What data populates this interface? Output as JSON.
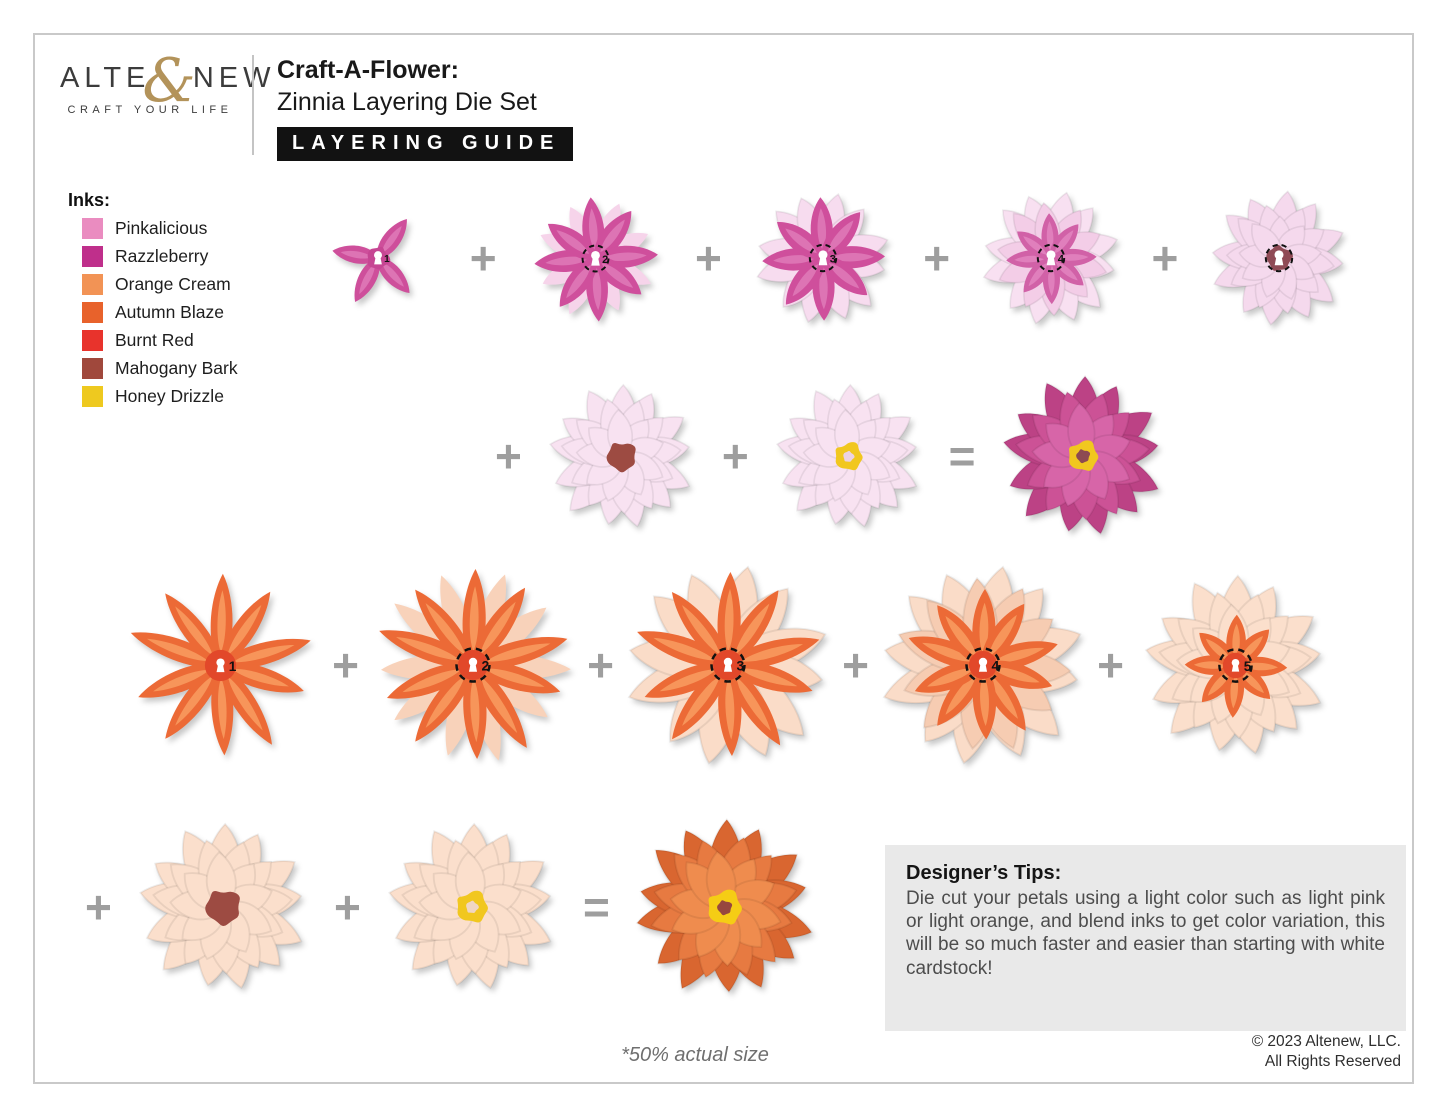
{
  "brand": {
    "logo_left": "ALT",
    "logo_mid": "E",
    "ampersand": "&",
    "logo_right": "NEW",
    "tagline": "CRAFT YOUR LIFE"
  },
  "header": {
    "title_line1": "Craft-A-Flower:",
    "title_line2": "Zinnia Layering Die Set",
    "badge": "LAYERING GUIDE"
  },
  "inks": {
    "title": "Inks:",
    "items": [
      {
        "name": "Pinkalicious",
        "color": "#ea8cc0"
      },
      {
        "name": "Razzleberry",
        "color": "#bf2f8b"
      },
      {
        "name": "Orange Cream",
        "color": "#f29355"
      },
      {
        "name": "Autumn Blaze",
        "color": "#e8622b"
      },
      {
        "name": "Burnt Red",
        "color": "#e8332c"
      },
      {
        "name": "Mahogany Bark",
        "color": "#a0483c"
      },
      {
        "name": "Honey Drizzle",
        "color": "#eec91f"
      }
    ]
  },
  "tips": {
    "title": "Designer’s Tips:",
    "body": "Die cut your petals using a light color such as light pink or light orange, and blend inks to get color variation, this will be so much faster and easier than starting with white cardstock!"
  },
  "footer": {
    "scale_note": "*50% actual size",
    "copyright_line1": "© 2023 Altenew, LLC.",
    "copyright_line2": "All Rights Reserved"
  },
  "figures": {
    "rows": [
      {
        "items": [
          {
            "kind": "flower",
            "spec": {
              "size": 150,
              "layers": [
                {
                  "angles": [
                    35,
                    140,
                    205,
                    280
                  ],
                  "len": 68,
                  "wid": 32,
                  "color": "#ce4f9b",
                  "streak": "#dd74b4"
                }
              ],
              "center": {
                "splat": {
                  "color": "#c64693",
                  "r": 17,
                  "seed": 3
                },
                "keyhole": true,
                "khScale": 1,
                "label": "1"
              }
            }
          },
          {
            "kind": "op",
            "glyph": "+"
          },
          {
            "kind": "flower",
            "spec": {
              "size": 165,
              "layers": [
                {
                  "n": 8,
                  "rot": 22,
                  "len": 76,
                  "wid": 34,
                  "color": "#f6d4ea"
                },
                {
                  "n": 8,
                  "rot": -6,
                  "len": 78,
                  "wid": 36,
                  "color": "#cf4f9c",
                  "streak": "#dd74b4"
                }
              ],
              "center": {
                "dashed": true,
                "keyhole": true,
                "khScale": 1,
                "label": "2"
              }
            }
          },
          {
            "kind": "op",
            "glyph": "+"
          },
          {
            "kind": "flower",
            "spec": {
              "size": 168,
              "layers": [
                {
                  "n": 12,
                  "rot": 12,
                  "len": 82,
                  "wid": 44,
                  "color": "#f7dcef",
                  "edge": true
                },
                {
                  "n": 8,
                  "rot": -4,
                  "len": 76,
                  "wid": 36,
                  "color": "#cf4f9c",
                  "streak": "#dd74b4"
                }
              ],
              "center": {
                "dashed": true,
                "keyhole": true,
                "khScale": 1,
                "label": "3"
              }
            }
          },
          {
            "kind": "op",
            "glyph": "+"
          },
          {
            "kind": "flower",
            "spec": {
              "size": 168,
              "layers": [
                {
                  "n": 12,
                  "rot": 12,
                  "len": 84,
                  "wid": 46,
                  "color": "#f8e0f1",
                  "edge": true
                },
                {
                  "n": 10,
                  "rot": 30,
                  "len": 70,
                  "wid": 40,
                  "color": "#f3cde7",
                  "edge": true
                },
                {
                  "n": 8,
                  "rot": -4,
                  "len": 56,
                  "wid": 28,
                  "color": "#d161a7",
                  "streak": "#e07fbc"
                }
              ],
              "center": {
                "dashed": true,
                "keyhole": true,
                "khScale": 1,
                "label": "4"
              }
            }
          },
          {
            "kind": "op",
            "glyph": "+"
          },
          {
            "kind": "flower",
            "spec": {
              "size": 168,
              "layers": [
                {
                  "n": 12,
                  "rot": 6,
                  "len": 84,
                  "wid": 46,
                  "color": "#f5d9ed",
                  "edge": true
                },
                {
                  "n": 10,
                  "rot": 24,
                  "len": 68,
                  "wid": 42,
                  "color": "#f5d9ed",
                  "edge": true
                },
                {
                  "n": 9,
                  "rot": 0,
                  "len": 52,
                  "wid": 36,
                  "color": "#f5d9ed",
                  "edge": true
                }
              ],
              "center": {
                "splat": {
                  "color": "#8f4a55",
                  "r": 17,
                  "seed": 5
                },
                "dashed": true,
                "keyhole": true,
                "khScale": 1
              }
            }
          }
        ]
      },
      {
        "items": [
          {
            "kind": "op",
            "glyph": "+"
          },
          {
            "kind": "flower",
            "spec": {
              "size": 175,
              "layers": [
                {
                  "n": 13,
                  "len": 86,
                  "wid": 46,
                  "color": "#f8e2f1",
                  "edge": true
                },
                {
                  "n": 11,
                  "rot": 16,
                  "len": 70,
                  "wid": 42,
                  "color": "#f8e2f1",
                  "edge": true
                },
                {
                  "n": 9,
                  "rot": 34,
                  "len": 54,
                  "wid": 38,
                  "color": "#f8e2f1",
                  "edge": true
                }
              ],
              "center": {
                "splat": {
                  "color": "#9d4b42",
                  "r": 19,
                  "seed": 7
                }
              }
            }
          },
          {
            "kind": "op",
            "glyph": "+"
          },
          {
            "kind": "flower",
            "spec": {
              "size": 175,
              "layers": [
                {
                  "n": 13,
                  "len": 86,
                  "wid": 46,
                  "color": "#f8e2f1",
                  "edge": true
                },
                {
                  "n": 11,
                  "rot": 16,
                  "len": 70,
                  "wid": 42,
                  "color": "#f8e2f1",
                  "edge": true
                },
                {
                  "n": 9,
                  "rot": 34,
                  "len": 54,
                  "wid": 38,
                  "color": "#f8e2f1",
                  "edge": true
                }
              ],
              "center": {
                "splat": {
                  "color": "#f1c71f",
                  "r": 18,
                  "seed": 9
                },
                "splat2": {
                  "color": "#ecd2e3",
                  "r": 7,
                  "seed": 4
                }
              }
            }
          },
          {
            "kind": "op",
            "glyph": "="
          },
          {
            "kind": "flower",
            "spec": {
              "size": 190,
              "layers": [
                {
                  "n": 13,
                  "len": 88,
                  "wid": 46,
                  "color": "#bc4285",
                  "edge": true
                },
                {
                  "n": 11,
                  "rot": 16,
                  "len": 72,
                  "wid": 42,
                  "color": "#cc5296",
                  "edge": true
                },
                {
                  "n": 9,
                  "rot": 34,
                  "len": 56,
                  "wid": 38,
                  "color": "#d765a8",
                  "edge": true
                }
              ],
              "center": {
                "splat": {
                  "color": "#f1c71f",
                  "r": 18,
                  "seed": 9
                },
                "splat2": {
                  "color": "#8d4a52",
                  "r": 8,
                  "seed": 6
                }
              }
            }
          }
        ]
      },
      {
        "items": [
          {
            "kind": "flower",
            "spec": {
              "size": 205,
              "layers": [
                {
                  "n": 10,
                  "rot": 0,
                  "len": 94,
                  "wid": 29,
                  "color": "#ec6a36",
                  "streak": "#f7955a"
                }
              ],
              "centerDot": {
                "color": "#e2482a",
                "r": 16
              },
              "center": {
                "keyhole": true,
                "khScale": 0.75,
                "label": "1"
              }
            }
          },
          {
            "kind": "op",
            "glyph": "+"
          },
          {
            "kind": "flower",
            "spec": {
              "size": 210,
              "layers": [
                {
                  "n": 10,
                  "rot": 18,
                  "len": 96,
                  "wid": 31,
                  "color": "#f8d2ba"
                },
                {
                  "n": 10,
                  "rot": 0,
                  "len": 96,
                  "wid": 30,
                  "color": "#ec6a36",
                  "streak": "#f7955a"
                }
              ],
              "centerDot": {
                "color": "#e2482a",
                "r": 15
              },
              "center": {
                "dashed": true,
                "keyhole": true,
                "khScale": 0.75,
                "label": "2"
              }
            }
          },
          {
            "kind": "op",
            "glyph": "+"
          },
          {
            "kind": "flower",
            "spec": {
              "size": 210,
              "layers": [
                {
                  "n": 12,
                  "rot": 10,
                  "len": 100,
                  "wid": 50,
                  "color": "#fadcc8",
                  "edge": true
                },
                {
                  "n": 10,
                  "rot": 0,
                  "len": 93,
                  "wid": 30,
                  "color": "#ec6a36",
                  "streak": "#f7955a"
                }
              ],
              "centerDot": {
                "color": "#e2482a",
                "r": 15
              },
              "center": {
                "dashed": true,
                "keyhole": true,
                "khScale": 0.75,
                "label": "3"
              }
            }
          },
          {
            "kind": "op",
            "glyph": "+"
          },
          {
            "kind": "flower",
            "spec": {
              "size": 210,
              "layers": [
                {
                  "n": 12,
                  "rot": 10,
                  "len": 100,
                  "wid": 52,
                  "color": "#fadcc8",
                  "edge": true
                },
                {
                  "n": 11,
                  "rot": 26,
                  "len": 86,
                  "wid": 44,
                  "color": "#f6ccb2",
                  "edge": true
                },
                {
                  "n": 10,
                  "rot": 0,
                  "len": 76,
                  "wid": 30,
                  "color": "#ec6a36",
                  "streak": "#f7955a"
                }
              ],
              "centerDot": {
                "color": "#e2482a",
                "r": 14
              },
              "center": {
                "dashed": true,
                "keyhole": true,
                "khScale": 0.75,
                "label": "4"
              }
            }
          },
          {
            "kind": "op",
            "glyph": "+"
          },
          {
            "kind": "flower",
            "spec": {
              "size": 205,
              "layers": [
                {
                  "n": 13,
                  "len": 92,
                  "wid": 48,
                  "color": "#fbdfcc",
                  "edge": true
                },
                {
                  "n": 11,
                  "rot": 16,
                  "len": 76,
                  "wid": 44,
                  "color": "#fbdfcc",
                  "edge": true
                },
                {
                  "n": 9,
                  "rot": 34,
                  "len": 60,
                  "wid": 40,
                  "color": "#fbdfcc",
                  "edge": true
                },
                {
                  "n": 8,
                  "rot": 0,
                  "len": 52,
                  "wid": 26,
                  "color": "#ec6a36",
                  "streak": "#f7955a"
                }
              ],
              "centerDot": {
                "color": "#e2482a",
                "r": 13
              },
              "center": {
                "dashed": true,
                "keyhole": true,
                "khScale": 0.7,
                "label": "5"
              }
            }
          }
        ]
      },
      {
        "items": [
          {
            "kind": "op",
            "glyph": "+"
          },
          {
            "kind": "flower",
            "spec": {
              "size": 198,
              "layers": [
                {
                  "n": 13,
                  "len": 88,
                  "wid": 48,
                  "color": "#fbdfcc",
                  "edge": true
                },
                {
                  "n": 11,
                  "rot": 16,
                  "len": 72,
                  "wid": 44,
                  "color": "#fbdfcc",
                  "edge": true
                },
                {
                  "n": 9,
                  "rot": 34,
                  "len": 56,
                  "wid": 40,
                  "color": "#fbdfcc",
                  "edge": true
                }
              ],
              "center": {
                "splat": {
                  "color": "#9d4b42",
                  "r": 20,
                  "seed": 7
                }
              }
            }
          },
          {
            "kind": "op",
            "glyph": "+"
          },
          {
            "kind": "flower",
            "spec": {
              "size": 198,
              "layers": [
                {
                  "n": 13,
                  "len": 88,
                  "wid": 48,
                  "color": "#fbdfcc",
                  "edge": true
                },
                {
                  "n": 11,
                  "rot": 16,
                  "len": 72,
                  "wid": 44,
                  "color": "#fbdfcc",
                  "edge": true
                },
                {
                  "n": 9,
                  "rot": 34,
                  "len": 56,
                  "wid": 40,
                  "color": "#fbdfcc",
                  "edge": true
                }
              ],
              "center": {
                "splat": {
                  "color": "#f1c71f",
                  "r": 18,
                  "seed": 9
                },
                "splat2": {
                  "color": "#f0d6c3",
                  "r": 7,
                  "seed": 4
                }
              }
            }
          },
          {
            "kind": "op",
            "glyph": "="
          },
          {
            "kind": "flower",
            "spec": {
              "size": 205,
              "layers": [
                {
                  "n": 14,
                  "len": 90,
                  "wid": 45,
                  "color": "#d96630",
                  "edge": true
                },
                {
                  "n": 12,
                  "rot": 14,
                  "len": 74,
                  "wid": 42,
                  "color": "#e77a41",
                  "edge": true
                },
                {
                  "n": 10,
                  "rot": 30,
                  "len": 58,
                  "wid": 38,
                  "color": "#ef8c4e",
                  "edge": true
                }
              ],
              "center": {
                "splat": {
                  "color": "#f5cd15",
                  "r": 19,
                  "seed": 9
                },
                "splat2": {
                  "color": "#97473f",
                  "r": 8,
                  "seed": 6
                }
              }
            }
          }
        ]
      }
    ]
  }
}
